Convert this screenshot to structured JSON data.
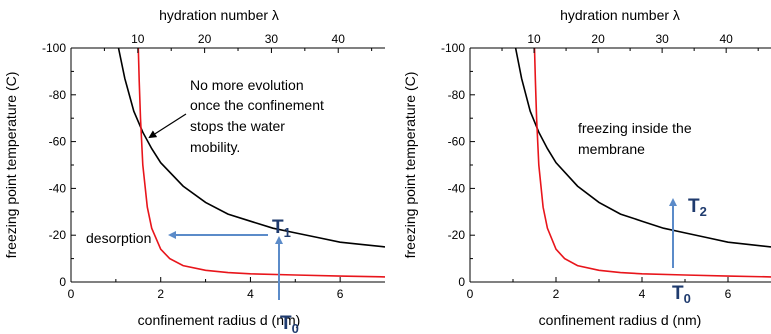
{
  "colors": {
    "black_curve": "#000000",
    "red_curve": "#e8151b",
    "arrow": "#5b8bc9",
    "state_label": "#1f3b6e"
  },
  "chart_data": [
    {
      "type": "line",
      "title": "",
      "xlabel": "confinement radius d (nm)",
      "ylabel": "freezing point temperature (C)",
      "top_xlabel": "hydration number λ",
      "xlim": [
        0,
        7
      ],
      "ylim": [
        0,
        -100
      ],
      "x_ticks": [
        0,
        2,
        4,
        6
      ],
      "y_ticks": [
        0,
        -20,
        -40,
        -60,
        -80,
        -100
      ],
      "x_tick_labels": [
        "0",
        "2",
        "4",
        "6"
      ],
      "y_tick_labels": [
        "0",
        "-20",
        "-40",
        "-60",
        "-80",
        "-100"
      ],
      "top_ticks": [
        10,
        20,
        30,
        40
      ],
      "top_tick_labels": [
        "10",
        "20",
        "30",
        "40"
      ],
      "top_axis_range": [
        0,
        47
      ],
      "grid": false,
      "legend": "none",
      "series": [
        {
          "color": "black",
          "x": [
            1.06,
            1.2,
            1.4,
            1.6,
            1.8,
            2.0,
            2.5,
            3.0,
            3.5,
            4.0,
            4.5,
            5.0,
            5.5,
            6.0,
            6.5,
            7.0
          ],
          "y": [
            -100,
            -87,
            -73,
            -64,
            -57,
            -51,
            -41,
            -34,
            -29,
            -26,
            -23,
            -21,
            -19,
            -17,
            -16,
            -15
          ]
        },
        {
          "color": "red",
          "x": [
            1.5,
            1.52,
            1.55,
            1.6,
            1.7,
            1.8,
            2.0,
            2.2,
            2.5,
            3.0,
            3.5,
            4.0,
            5.0,
            6.0,
            7.0
          ],
          "y": [
            -100,
            -86,
            -70,
            -50,
            -32,
            -23,
            -14,
            -10,
            -7,
            -5,
            -4,
            -3.5,
            -3,
            -2.5,
            -2.2
          ]
        }
      ],
      "annotations": {
        "note_lines": [
          "No more evolution",
          "once the confinement",
          "stops the water",
          "mobility."
        ],
        "desorption": "desorption",
        "t0_main": "T",
        "t0_sub": "0",
        "t1_main": "T",
        "t1_sub": "1"
      }
    },
    {
      "type": "line",
      "title": "",
      "xlabel": "confinement radius d (nm)",
      "ylabel": "freezing point temperature (C)",
      "top_xlabel": "hydration number λ",
      "xlim": [
        0,
        7
      ],
      "ylim": [
        0,
        -100
      ],
      "x_ticks": [
        0,
        2,
        4,
        6
      ],
      "y_ticks": [
        0,
        -20,
        -40,
        -60,
        -80,
        -100
      ],
      "x_tick_labels": [
        "0",
        "2",
        "4",
        "6"
      ],
      "y_tick_labels": [
        "0",
        "-20",
        "-40",
        "-60",
        "-80",
        "-100"
      ],
      "top_ticks": [
        10,
        20,
        30,
        40
      ],
      "top_tick_labels": [
        "10",
        "20",
        "30",
        "40"
      ],
      "top_axis_range": [
        0,
        47
      ],
      "grid": false,
      "legend": "none",
      "series": [
        {
          "color": "black",
          "x": [
            1.06,
            1.2,
            1.4,
            1.6,
            1.8,
            2.0,
            2.5,
            3.0,
            3.5,
            4.0,
            4.5,
            5.0,
            5.5,
            6.0,
            6.5,
            7.0
          ],
          "y": [
            -100,
            -87,
            -73,
            -64,
            -57,
            -51,
            -41,
            -34,
            -29,
            -26,
            -23,
            -21,
            -19,
            -17,
            -16,
            -15
          ]
        },
        {
          "color": "red",
          "x": [
            1.5,
            1.52,
            1.55,
            1.6,
            1.7,
            1.8,
            2.0,
            2.2,
            2.5,
            3.0,
            3.5,
            4.0,
            5.0,
            6.0,
            7.0
          ],
          "y": [
            -100,
            -86,
            -70,
            -50,
            -32,
            -23,
            -14,
            -10,
            -7,
            -5,
            -4,
            -3.5,
            -3,
            -2.5,
            -2.2
          ]
        }
      ],
      "annotations": {
        "note_lines": [
          "freezing inside the",
          "membrane"
        ],
        "t0_main": "T",
        "t0_sub": "0",
        "t2_main": "T",
        "t2_sub": "2"
      }
    }
  ]
}
